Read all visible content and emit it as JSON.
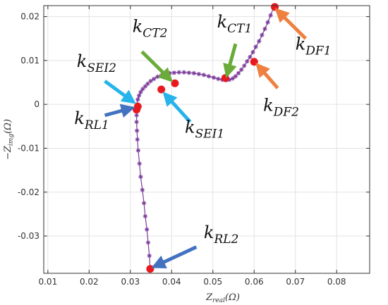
{
  "chart_data": {
    "type": "scatter",
    "title": "",
    "xlabel_main": "Z",
    "xlabel_sub": "real",
    "xlabel_unit": "(Ω)",
    "ylabel_main": "−Z",
    "ylabel_sub": "img",
    "ylabel_unit": "(Ω)",
    "xlim": [
      0.009,
      0.088
    ],
    "ylim": [
      -0.0385,
      0.0225
    ],
    "grid": true,
    "x_ticks": [
      0.01,
      0.02,
      0.03,
      0.04,
      0.05,
      0.06,
      0.07,
      0.08
    ],
    "x_tick_labels": [
      "0.01",
      "0.02",
      "0.03",
      "0.04",
      "0.05",
      "0.06",
      "0.07",
      "0.08"
    ],
    "y_ticks": [
      0.02,
      0.01,
      0,
      -0.01,
      -0.02,
      -0.03
    ],
    "y_tick_labels": [
      "0.02",
      "0.01",
      "0",
      "-0.01",
      "-0.02",
      "-0.03"
    ],
    "series": [
      {
        "marker": "asterisk",
        "color": "#7a3b9a",
        "x": [
          0.0348,
          0.0346,
          0.0343,
          0.034,
          0.0336,
          0.0333,
          0.0329,
          0.0325,
          0.0322,
          0.0319,
          0.0317,
          0.0316,
          0.0315,
          0.0315,
          0.0315,
          0.0316,
          0.0318,
          0.0321,
          0.0325,
          0.033,
          0.0336,
          0.0342,
          0.0349,
          0.0357,
          0.0366,
          0.0375,
          0.0385,
          0.0395,
          0.0406,
          0.0418,
          0.043,
          0.0442,
          0.0454,
          0.0466,
          0.0478,
          0.049,
          0.0502,
          0.0513,
          0.0523,
          0.0532,
          0.054,
          0.0548,
          0.0555,
          0.0562,
          0.0569,
          0.0576,
          0.0583,
          0.059,
          0.0597,
          0.0604,
          0.0612,
          0.0619,
          0.0626,
          0.0633,
          0.064,
          0.0647
        ],
        "y": [
          -0.0375,
          -0.0345,
          -0.0315,
          -0.0285,
          -0.0255,
          -0.0225,
          -0.0195,
          -0.0165,
          -0.0135,
          -0.0105,
          -0.008,
          -0.006,
          -0.004,
          -0.0025,
          -0.0012,
          0.0,
          0.0011,
          0.002,
          0.0028,
          0.0035,
          0.0041,
          0.0047,
          0.0053,
          0.0058,
          0.0063,
          0.0066,
          0.0069,
          0.0071,
          0.0072,
          0.0073,
          0.0073,
          0.0072,
          0.0071,
          0.0069,
          0.0067,
          0.0064,
          0.0061,
          0.0058,
          0.0056,
          0.0055,
          0.0056,
          0.0059,
          0.0064,
          0.0071,
          0.0079,
          0.0088,
          0.0098,
          0.0108,
          0.0119,
          0.0131,
          0.0144,
          0.0158,
          0.0172,
          0.0187,
          0.0203,
          0.022
        ]
      }
    ],
    "highlighted_points": [
      {
        "id": "RL2",
        "x": 0.0348,
        "y": -0.0375
      },
      {
        "id": "RL1",
        "x": 0.0315,
        "y": -0.0012
      },
      {
        "id": "SEI2",
        "x": 0.0318,
        "y": -0.0005
      },
      {
        "id": "SEI1",
        "x": 0.0375,
        "y": 0.0034
      },
      {
        "id": "CT2",
        "x": 0.0408,
        "y": 0.0048
      },
      {
        "id": "CT1",
        "x": 0.053,
        "y": 0.006
      },
      {
        "id": "DF2",
        "x": 0.06,
        "y": 0.0097
      },
      {
        "id": "DF1",
        "x": 0.065,
        "y": 0.0222
      }
    ],
    "highlight_color": "#e8191e",
    "annotations": [
      {
        "id": "DF1",
        "text_main": "k",
        "text_sub": "DF1",
        "color": "#ee8040",
        "tx": 0.07,
        "ty": 0.0125,
        "ax": 0.0725,
        "ay": 0.015,
        "bx": 0.0655,
        "by": 0.0215
      },
      {
        "id": "CT1",
        "text_main": "k",
        "text_sub": "CT1",
        "color": "#6aab3a",
        "tx": 0.051,
        "ty": 0.0175,
        "ax": 0.0555,
        "ay": 0.0138,
        "bx": 0.0534,
        "by": 0.0066
      },
      {
        "id": "CT2",
        "text_main": "k",
        "text_sub": "CT2",
        "color": "#6aab3a",
        "tx": 0.0305,
        "ty": 0.0165,
        "ax": 0.0328,
        "ay": 0.012,
        "bx": 0.0398,
        "by": 0.0055
      },
      {
        "id": "SEI2",
        "text_main": "k",
        "text_sub": "SEI2",
        "color": "#26b4ea",
        "tx": 0.017,
        "ty": 0.0085,
        "ax": 0.0238,
        "ay": 0.0053,
        "bx": 0.0308,
        "by": 0.0005
      },
      {
        "id": "RL1",
        "text_main": "k",
        "text_sub": "RL1",
        "color": "#4272c0",
        "tx": 0.0164,
        "ty": -0.0045,
        "ax": 0.0238,
        "ay": -0.0025,
        "bx": 0.0305,
        "by": -0.0008
      },
      {
        "id": "SEI1",
        "text_main": "k",
        "text_sub": "SEI1",
        "color": "#26b4ea",
        "tx": 0.0432,
        "ty": -0.0065,
        "ax": 0.0445,
        "ay": -0.004,
        "bx": 0.0383,
        "by": 0.0024
      },
      {
        "id": "DF2",
        "text_main": "k",
        "text_sub": "DF2",
        "color": "#ee8040",
        "tx": 0.0622,
        "ty": -0.0015,
        "ax": 0.0657,
        "ay": 0.0037,
        "bx": 0.0608,
        "by": 0.009
      },
      {
        "id": "RL2",
        "text_main": "k",
        "text_sub": "RL2",
        "color": "#4272c0",
        "tx": 0.0478,
        "ty": -0.0305,
        "ax": 0.046,
        "ay": -0.0325,
        "bx": 0.0357,
        "by": -0.037
      }
    ]
  }
}
